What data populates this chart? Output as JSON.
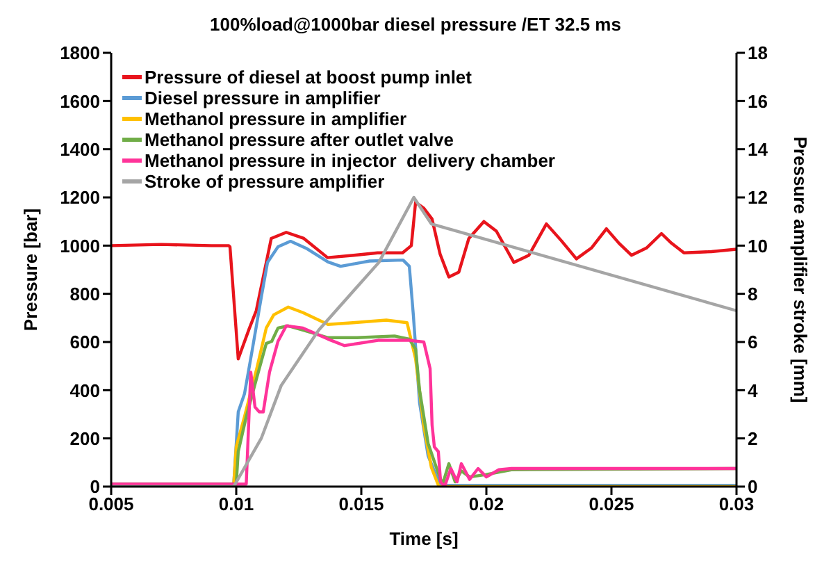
{
  "chart_data": {
    "type": "line",
    "title": "100%load@1000bar diesel pressure /ET 32.5 ms",
    "xlabel": "Time [s]",
    "ylabel": "Pressure [bar]",
    "y2label": "Pressure amplifier stroke [mm]",
    "xlim": [
      0.005,
      0.03
    ],
    "xticks": [
      0.005,
      0.01,
      0.015,
      0.02,
      0.025,
      0.03
    ],
    "ylim": [
      0,
      1800
    ],
    "yticks": [
      0,
      200,
      400,
      600,
      800,
      1000,
      1200,
      1400,
      1600,
      1800
    ],
    "y2lim": [
      0,
      18
    ],
    "y2ticks": [
      0,
      2,
      4,
      6,
      8,
      10,
      12,
      14,
      16,
      18
    ],
    "grid": false,
    "legend": "top left",
    "marker": "none",
    "line_style": "solid",
    "series": [
      {
        "name": "Pressure of diesel at boost pump inlet",
        "color": "#e8141c",
        "x": [
          0.005,
          0.007,
          0.009,
          0.0097,
          0.00975,
          0.01008,
          0.0105,
          0.0108,
          0.0112,
          0.0114,
          0.012,
          0.0127,
          0.01365,
          0.0147,
          0.01565,
          0.01665,
          0.017,
          0.01717,
          0.0175,
          0.01783,
          0.01815,
          0.0185,
          0.0189,
          0.0193,
          0.0199,
          0.0204,
          0.0211,
          0.0217,
          0.0224,
          0.023,
          0.0236,
          0.0242,
          0.0248,
          0.0253,
          0.0258,
          0.0264,
          0.027,
          0.0274,
          0.0279,
          0.029,
          0.03
        ],
        "values": [
          1000,
          1005,
          1000,
          1000,
          995,
          530,
          650,
          730,
          930,
          1030,
          1055,
          1030,
          950,
          960,
          970,
          970,
          1000,
          1180,
          1155,
          1110,
          965,
          870,
          890,
          1030,
          1100,
          1060,
          930,
          960,
          1090,
          1020,
          945,
          990,
          1070,
          1010,
          960,
          990,
          1050,
          1010,
          970,
          975,
          985
        ]
      },
      {
        "name": "Diesel pressure in amplifier",
        "color": "#5b9bd5",
        "x": [
          0.0099,
          0.01008,
          0.01033,
          0.01067,
          0.011,
          0.01125,
          0.01167,
          0.01217,
          0.01283,
          0.01367,
          0.01417,
          0.01533,
          0.01667,
          0.01692,
          0.01708,
          0.01733,
          0.01767,
          0.01815,
          0.019,
          0.03
        ],
        "values": [
          10,
          310,
          385,
          585,
          785,
          930,
          995,
          1018,
          987,
          932,
          914,
          936,
          940,
          914,
          713,
          347,
          128,
          5,
          5,
          5
        ]
      },
      {
        "name": "Methanol pressure in amplifier",
        "color": "#ffc000",
        "x": [
          0.0099,
          0.01,
          0.01033,
          0.01083,
          0.0112,
          0.0115,
          0.01208,
          0.01267,
          0.01367,
          0.01467,
          0.016,
          0.01683,
          0.01717,
          0.0175,
          0.0178,
          0.0181,
          0.03
        ],
        "values": [
          10,
          165,
          290,
          494,
          658,
          713,
          745,
          722,
          673,
          680,
          691,
          680,
          530,
          250,
          80,
          0,
          0
        ]
      },
      {
        "name": "Methanol pressure after outlet valve",
        "color": "#70ad47",
        "x": [
          0.005,
          0.01,
          0.01008,
          0.0104,
          0.01083,
          0.0112,
          0.01142,
          0.01167,
          0.01208,
          0.01267,
          0.01367,
          0.01483,
          0.01633,
          0.01692,
          0.01717,
          0.01733,
          0.01767,
          0.01808,
          0.01825,
          0.0185,
          0.01875,
          0.019,
          0.01933,
          0.02,
          0.021,
          0.03
        ],
        "values": [
          10,
          10,
          145,
          290,
          455,
          594,
          603,
          658,
          667,
          649,
          618,
          618,
          625,
          612,
          570,
          400,
          180,
          55,
          10,
          95,
          20,
          65,
          40,
          50,
          70,
          75
        ]
      },
      {
        "name": "Methanol pressure in injector  delivery chamber",
        "color": "#ff3399",
        "x": [
          0.005,
          0.0104,
          0.01058,
          0.01067,
          0.01075,
          0.01092,
          0.01108,
          0.01133,
          0.01167,
          0.012,
          0.01267,
          0.01367,
          0.01433,
          0.01567,
          0.01692,
          0.0175,
          0.01775,
          0.01783,
          0.01792,
          0.01808,
          0.01817,
          0.01833,
          0.01858,
          0.01883,
          0.019,
          0.01933,
          0.01967,
          0.02,
          0.0205,
          0.021,
          0.03
        ],
        "values": [
          10,
          10,
          475,
          400,
          330,
          310,
          310,
          475,
          603,
          667,
          658,
          612,
          585,
          607,
          607,
          600,
          490,
          255,
          165,
          145,
          20,
          0,
          75,
          20,
          95,
          30,
          75,
          40,
          70,
          75,
          75
        ]
      },
      {
        "name": "Stroke of pressure amplifier",
        "color": "#a5a5a5",
        "axis": "y2",
        "x": [
          0.005,
          0.0099,
          0.011,
          0.0118,
          0.0133,
          0.0157,
          0.0171,
          0.0178,
          0.03
        ],
        "values": [
          0,
          0,
          2.0,
          4.2,
          6.5,
          9.3,
          12.0,
          10.9,
          7.3
        ]
      }
    ]
  }
}
